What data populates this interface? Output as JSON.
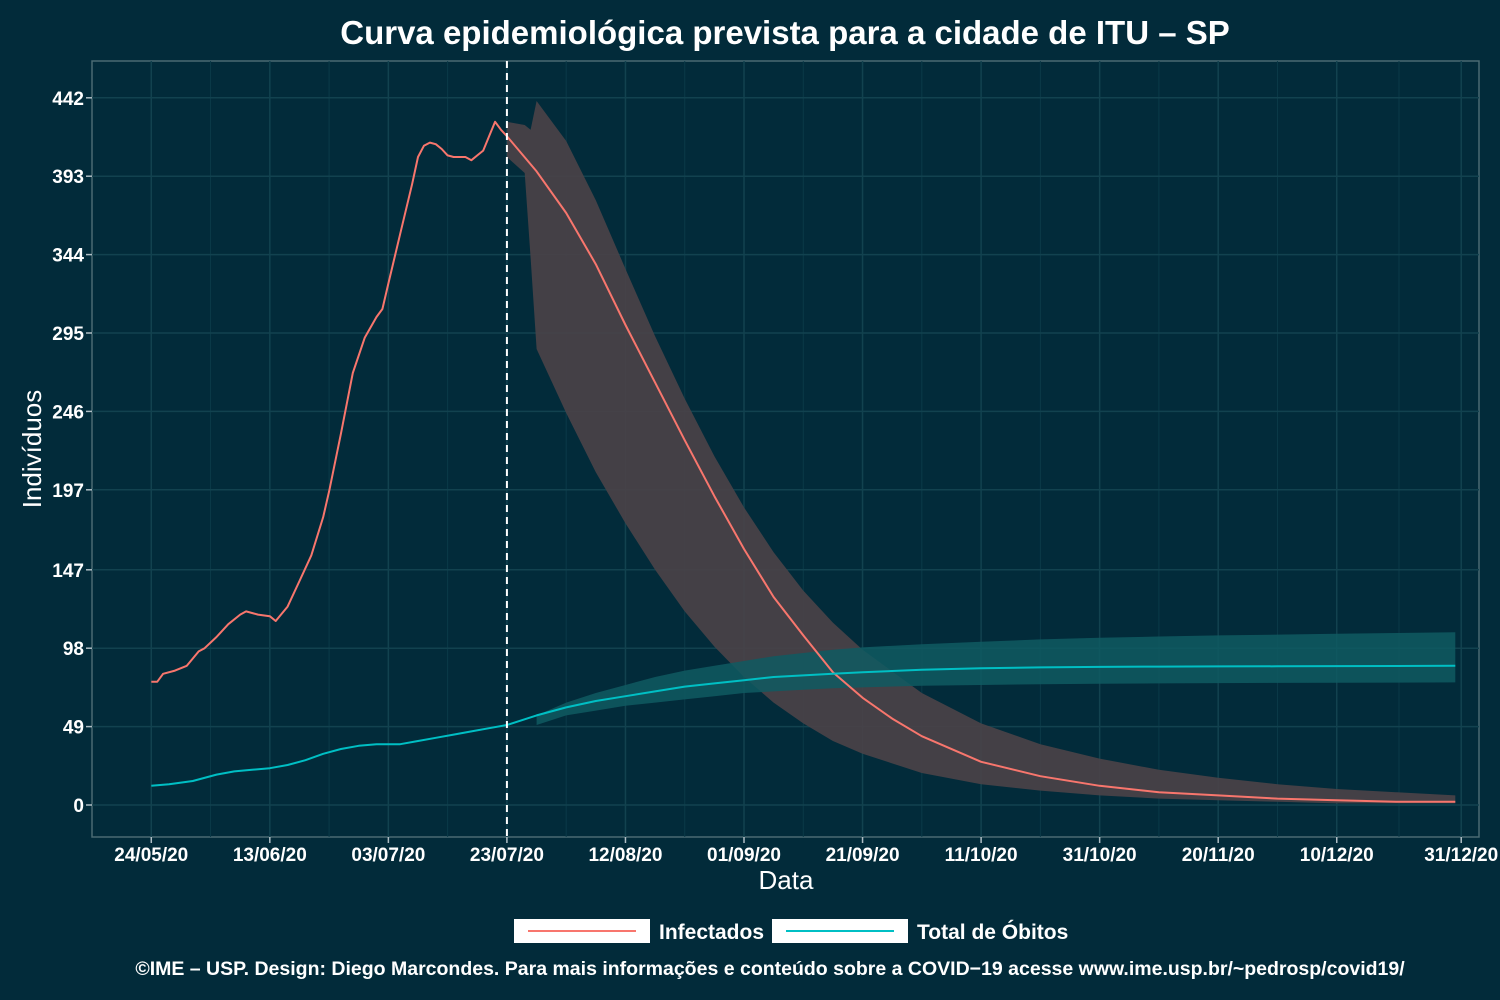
{
  "chart_data": {
    "type": "line",
    "title": "Curva epidemiológica prevista para a cidade de ITU – SP",
    "xlabel": "Data",
    "ylabel": "Indivíduos",
    "x_type": "date",
    "xlim": [
      "2020-05-14",
      "2021-01-03"
    ],
    "ylim": [
      -20,
      465
    ],
    "y_ticks": [
      0,
      49,
      98,
      147,
      197,
      246,
      295,
      344,
      393,
      442
    ],
    "x_ticks": [
      {
        "date": "2020-05-24",
        "label": "24/05/20"
      },
      {
        "date": "2020-06-13",
        "label": "13/06/20"
      },
      {
        "date": "2020-07-03",
        "label": "03/07/20"
      },
      {
        "date": "2020-07-23",
        "label": "23/07/20"
      },
      {
        "date": "2020-08-12",
        "label": "12/08/20"
      },
      {
        "date": "2020-09-01",
        "label": "01/09/20"
      },
      {
        "date": "2020-09-21",
        "label": "21/09/20"
      },
      {
        "date": "2020-10-11",
        "label": "11/10/20"
      },
      {
        "date": "2020-10-31",
        "label": "31/10/20"
      },
      {
        "date": "2020-11-20",
        "label": "20/11/20"
      },
      {
        "date": "2020-12-10",
        "label": "10/12/20"
      },
      {
        "date": "2020-12-31",
        "label": "31/12/20"
      }
    ],
    "forecast_start": "2020-07-23",
    "grid": true,
    "legend_position": "bottom",
    "series": [
      {
        "name": "Infectados",
        "color": "#f8766d",
        "points": [
          [
            "2020-05-24",
            77
          ],
          [
            "2020-05-25",
            77
          ],
          [
            "2020-05-26",
            82
          ],
          [
            "2020-05-28",
            84
          ],
          [
            "2020-05-30",
            87
          ],
          [
            "2020-06-01",
            96
          ],
          [
            "2020-06-02",
            98
          ],
          [
            "2020-06-04",
            105
          ],
          [
            "2020-06-06",
            113
          ],
          [
            "2020-06-08",
            119
          ],
          [
            "2020-06-09",
            121
          ],
          [
            "2020-06-11",
            119
          ],
          [
            "2020-06-13",
            118
          ],
          [
            "2020-06-14",
            115
          ],
          [
            "2020-06-16",
            124
          ],
          [
            "2020-06-18",
            140
          ],
          [
            "2020-06-20",
            156
          ],
          [
            "2020-06-22",
            180
          ],
          [
            "2020-06-23",
            196
          ],
          [
            "2020-06-25",
            232
          ],
          [
            "2020-06-27",
            270
          ],
          [
            "2020-06-29",
            292
          ],
          [
            "2020-07-01",
            305
          ],
          [
            "2020-07-02",
            310
          ],
          [
            "2020-07-03",
            326
          ],
          [
            "2020-07-05",
            357
          ],
          [
            "2020-07-07",
            388
          ],
          [
            "2020-07-08",
            405
          ],
          [
            "2020-07-09",
            412
          ],
          [
            "2020-07-10",
            414
          ],
          [
            "2020-07-11",
            413
          ],
          [
            "2020-07-12",
            410
          ],
          [
            "2020-07-13",
            406
          ],
          [
            "2020-07-14",
            405
          ],
          [
            "2020-07-15",
            405
          ],
          [
            "2020-07-16",
            405
          ],
          [
            "2020-07-17",
            403
          ],
          [
            "2020-07-18",
            406
          ],
          [
            "2020-07-19",
            409
          ],
          [
            "2020-07-20",
            418
          ],
          [
            "2020-07-21",
            427
          ],
          [
            "2020-07-22",
            422
          ],
          [
            "2020-07-23",
            418
          ],
          [
            "2020-07-28",
            396
          ],
          [
            "2020-08-02",
            370
          ],
          [
            "2020-08-07",
            338
          ],
          [
            "2020-08-12",
            300
          ],
          [
            "2020-08-17",
            264
          ],
          [
            "2020-08-22",
            228
          ],
          [
            "2020-08-27",
            193
          ],
          [
            "2020-09-01",
            160
          ],
          [
            "2020-09-06",
            130
          ],
          [
            "2020-09-11",
            106
          ],
          [
            "2020-09-16",
            83
          ],
          [
            "2020-09-21",
            67
          ],
          [
            "2020-09-26",
            54
          ],
          [
            "2020-10-01",
            43
          ],
          [
            "2020-10-11",
            27
          ],
          [
            "2020-10-21",
            18
          ],
          [
            "2020-10-31",
            12
          ],
          [
            "2020-11-10",
            8
          ],
          [
            "2020-11-20",
            6
          ],
          [
            "2020-11-30",
            4
          ],
          [
            "2020-12-10",
            3
          ],
          [
            "2020-12-20",
            2
          ],
          [
            "2020-12-30",
            2
          ]
        ],
        "band": [
          [
            "2020-07-23",
            405,
            427
          ],
          [
            "2020-07-26",
            395,
            425
          ],
          [
            "2020-07-27",
            342,
            422
          ],
          [
            "2020-07-28",
            285,
            440
          ],
          [
            "2020-08-02",
            245,
            415
          ],
          [
            "2020-08-07",
            208,
            378
          ],
          [
            "2020-08-12",
            176,
            335
          ],
          [
            "2020-08-17",
            147,
            293
          ],
          [
            "2020-08-22",
            121,
            254
          ],
          [
            "2020-08-27",
            99,
            218
          ],
          [
            "2020-09-01",
            80,
            186
          ],
          [
            "2020-09-06",
            64,
            158
          ],
          [
            "2020-09-11",
            51,
            134
          ],
          [
            "2020-09-16",
            40,
            114
          ],
          [
            "2020-09-21",
            32,
            97
          ],
          [
            "2020-10-01",
            20,
            70
          ],
          [
            "2020-10-11",
            13,
            51
          ],
          [
            "2020-10-21",
            9,
            38
          ],
          [
            "2020-10-31",
            6,
            29
          ],
          [
            "2020-11-10",
            4,
            22
          ],
          [
            "2020-11-20",
            3,
            17
          ],
          [
            "2020-11-30",
            2,
            13
          ],
          [
            "2020-12-10",
            1,
            10
          ],
          [
            "2020-12-20",
            1,
            8
          ],
          [
            "2020-12-30",
            1,
            6
          ]
        ]
      },
      {
        "name": "Total de Óbitos",
        "color": "#00bfc4",
        "points": [
          [
            "2020-05-24",
            12
          ],
          [
            "2020-05-27",
            13
          ],
          [
            "2020-05-31",
            15
          ],
          [
            "2020-06-04",
            19
          ],
          [
            "2020-06-07",
            21
          ],
          [
            "2020-06-10",
            22
          ],
          [
            "2020-06-13",
            23
          ],
          [
            "2020-06-16",
            25
          ],
          [
            "2020-06-19",
            28
          ],
          [
            "2020-06-22",
            32
          ],
          [
            "2020-06-25",
            35
          ],
          [
            "2020-06-28",
            37
          ],
          [
            "2020-07-01",
            38
          ],
          [
            "2020-07-05",
            38
          ],
          [
            "2020-07-08",
            40
          ],
          [
            "2020-07-11",
            42
          ],
          [
            "2020-07-14",
            44
          ],
          [
            "2020-07-17",
            46
          ],
          [
            "2020-07-20",
            48
          ],
          [
            "2020-07-23",
            50
          ],
          [
            "2020-07-28",
            56
          ],
          [
            "2020-08-02",
            61
          ],
          [
            "2020-08-07",
            65
          ],
          [
            "2020-08-12",
            68
          ],
          [
            "2020-08-17",
            71
          ],
          [
            "2020-08-22",
            74
          ],
          [
            "2020-08-27",
            76
          ],
          [
            "2020-09-01",
            78
          ],
          [
            "2020-09-06",
            80
          ],
          [
            "2020-09-11",
            81
          ],
          [
            "2020-09-16",
            82
          ],
          [
            "2020-09-21",
            83
          ],
          [
            "2020-10-01",
            84.5
          ],
          [
            "2020-10-11",
            85.5
          ],
          [
            "2020-10-21",
            86
          ],
          [
            "2020-10-31",
            86.3
          ],
          [
            "2020-11-10",
            86.5
          ],
          [
            "2020-11-20",
            86.6
          ],
          [
            "2020-11-30",
            86.7
          ],
          [
            "2020-12-10",
            86.8
          ],
          [
            "2020-12-20",
            86.9
          ],
          [
            "2020-12-30",
            87
          ]
        ],
        "band": [
          [
            "2020-07-28",
            50,
            56
          ],
          [
            "2020-08-02",
            56,
            64
          ],
          [
            "2020-08-07",
            59,
            70
          ],
          [
            "2020-08-12",
            62,
            75
          ],
          [
            "2020-08-17",
            64,
            80
          ],
          [
            "2020-08-22",
            66,
            84
          ],
          [
            "2020-08-27",
            68,
            87
          ],
          [
            "2020-09-01",
            70,
            90
          ],
          [
            "2020-09-06",
            71,
            93
          ],
          [
            "2020-09-11",
            72,
            95
          ],
          [
            "2020-09-16",
            73,
            97
          ],
          [
            "2020-09-21",
            73.5,
            98.5
          ],
          [
            "2020-10-01",
            74.5,
            100.5
          ],
          [
            "2020-10-11",
            75,
            102
          ],
          [
            "2020-10-21",
            75.5,
            103.5
          ],
          [
            "2020-10-31",
            75.8,
            104.5
          ],
          [
            "2020-11-10",
            76,
            105.3
          ],
          [
            "2020-11-20",
            76.2,
            106
          ],
          [
            "2020-11-30",
            76.3,
            106.5
          ],
          [
            "2020-12-10",
            76.4,
            107
          ],
          [
            "2020-12-20",
            76.5,
            107.5
          ],
          [
            "2020-12-30",
            76.6,
            108
          ]
        ]
      }
    ],
    "caption": "©IME – USP. Design: Diego Marcondes. Para mais informações e conteúdo sobre a COVID−19 acesse www.ime.usp.br/~pedrosp/covid19/"
  }
}
